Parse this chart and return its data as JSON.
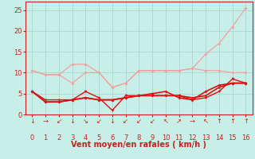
{
  "title": "",
  "xlabel": "Vent moyen/en rafales ( km/h )",
  "x": [
    0,
    1,
    2,
    3,
    4,
    5,
    6,
    7,
    8,
    9,
    10,
    11,
    12,
    13,
    14,
    15,
    16
  ],
  "line1": [
    10.5,
    9.5,
    9.5,
    7.5,
    10.0,
    10.0,
    6.5,
    7.5,
    10.5,
    10.5,
    10.5,
    10.5,
    11.0,
    10.5,
    10.5,
    10.0,
    10.0
  ],
  "line2": [
    10.5,
    9.5,
    9.5,
    12.0,
    12.0,
    10.0,
    6.5,
    7.5,
    10.5,
    10.5,
    10.5,
    10.5,
    11.0,
    14.5,
    17.0,
    21.0,
    25.5
  ],
  "line3": [
    5.5,
    3.5,
    3.5,
    3.5,
    5.5,
    4.0,
    1.0,
    4.5,
    4.5,
    4.5,
    4.5,
    4.5,
    3.5,
    4.0,
    5.5,
    8.5,
    7.5
  ],
  "line4": [
    5.5,
    3.0,
    3.0,
    3.5,
    4.0,
    3.5,
    3.5,
    4.0,
    4.5,
    5.0,
    5.5,
    4.0,
    3.5,
    5.5,
    7.0,
    7.5,
    7.5
  ],
  "line5": [
    5.5,
    3.0,
    3.0,
    3.5,
    4.0,
    3.5,
    3.5,
    4.0,
    4.5,
    4.5,
    4.5,
    4.5,
    4.0,
    4.5,
    6.5,
    7.5,
    7.5
  ],
  "color_light": "#F4A0A0",
  "color_dark": "#DD1111",
  "background_color": "#C8EEE8",
  "grid_color": "#A8D8D0",
  "axis_color": "#CC2020",
  "ylim": [
    0,
    27
  ],
  "yticks": [
    0,
    5,
    10,
    15,
    20,
    25
  ],
  "xticks": [
    0,
    1,
    2,
    3,
    4,
    5,
    6,
    7,
    8,
    9,
    10,
    11,
    12,
    13,
    14,
    15,
    16
  ],
  "arrow_labels": [
    "↓",
    "→",
    "↙",
    "↓",
    "↘",
    "↙",
    "↓",
    "↙",
    "↙",
    "↙",
    "↖",
    "↗",
    "→",
    "↖",
    "↑",
    "↑",
    "↑"
  ]
}
